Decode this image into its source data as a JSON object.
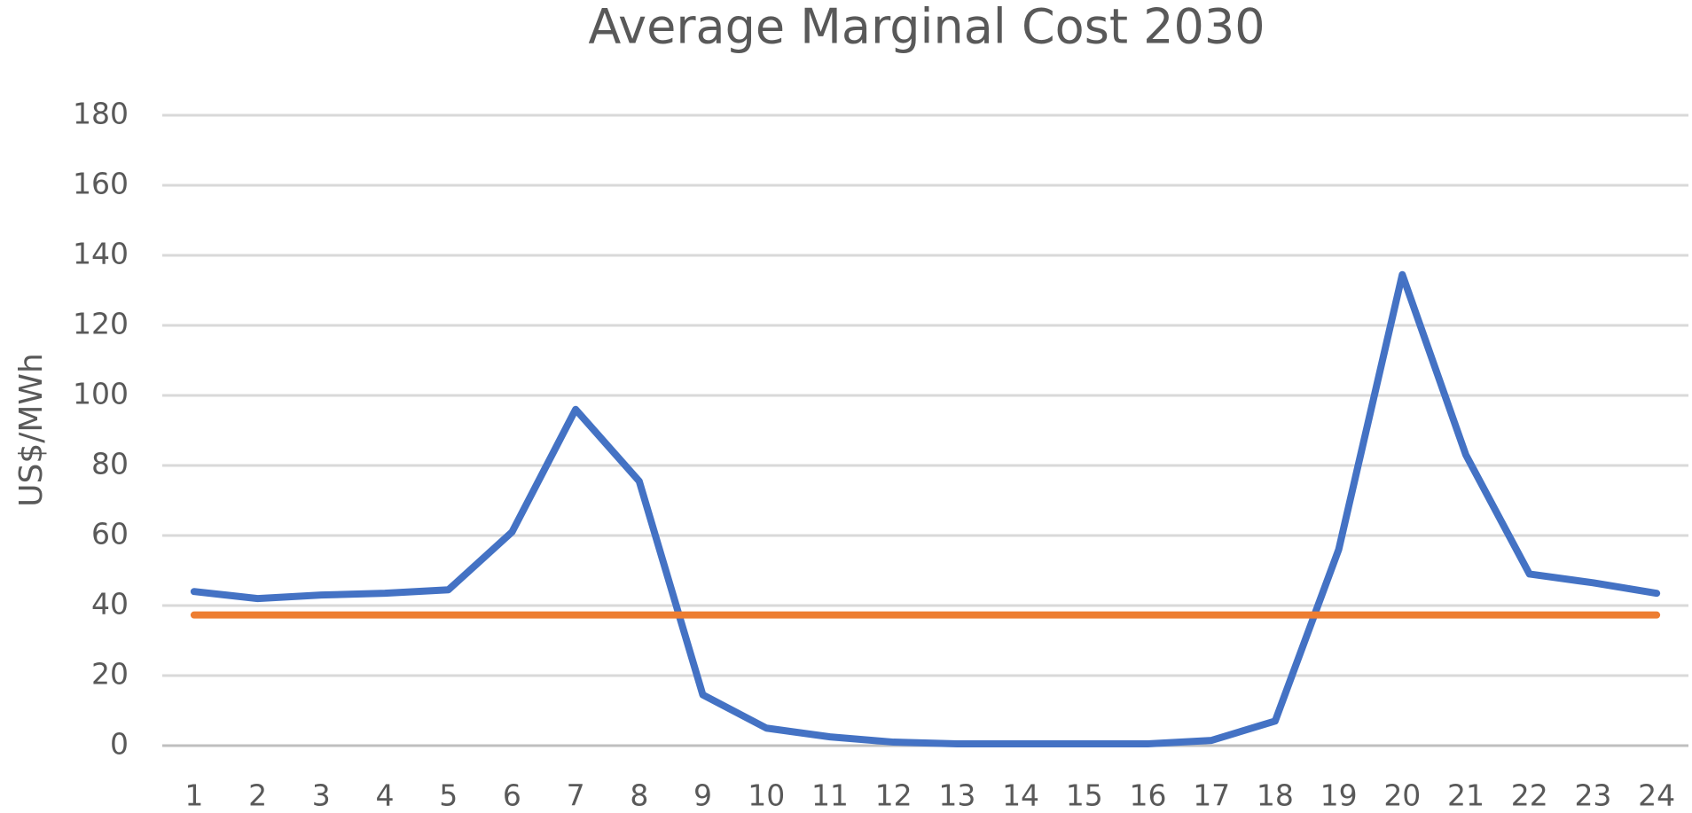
{
  "chart_data": {
    "type": "line",
    "title": "Average Marginal Cost 2030",
    "y_label": "US$/MWh",
    "categories": [
      1,
      2,
      3,
      4,
      5,
      6,
      7,
      8,
      9,
      10,
      11,
      12,
      13,
      14,
      15,
      16,
      17,
      18,
      19,
      20,
      21,
      22,
      23,
      24
    ],
    "series": [
      {
        "color": "#4472c4",
        "values": [
          44,
          42,
          43,
          43.5,
          44.5,
          61,
          96,
          75.5,
          14.5,
          5,
          2.5,
          1,
          0.5,
          0.5,
          0.5,
          0.5,
          1.5,
          7,
          56,
          134.5,
          83,
          49,
          46.5,
          43.5
        ]
      },
      {
        "color": "#ed7d31",
        "values": [
          37.3,
          37.3,
          37.3,
          37.3,
          37.3,
          37.3,
          37.3,
          37.3,
          37.3,
          37.3,
          37.3,
          37.3,
          37.3,
          37.3,
          37.3,
          37.3,
          37.3,
          37.3,
          37.3,
          37.3,
          37.3,
          37.3,
          37.3,
          37.3
        ]
      }
    ],
    "ylim": [
      0,
      180
    ],
    "yticks": [
      0,
      20,
      40,
      60,
      80,
      100,
      120,
      140,
      160,
      180
    ],
    "grid": true
  }
}
